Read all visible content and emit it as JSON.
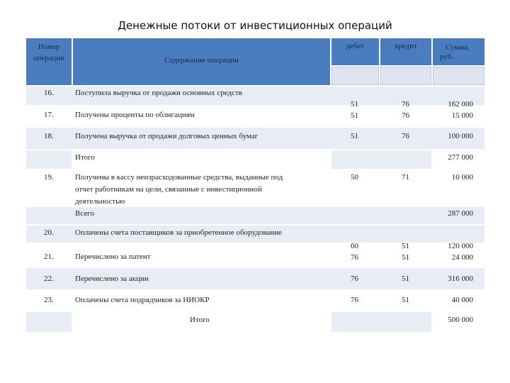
{
  "title": "Денежные потоки от инвестиционных операций",
  "headers": {
    "num": "Номер операции",
    "content": "Содержание операции",
    "debit": "дебет",
    "credit": "кредит",
    "sum_line1": "Сумма,",
    "sum_line2": "руб."
  },
  "rows": [
    {
      "num": "16.",
      "text": "Поступила выручка от продажи основных средств"
    },
    {
      "num": "17.",
      "text": "Получены проценты по облигациям"
    },
    {
      "num": "18.",
      "text": "Получена выручка от продажи долговых ценных бумаг"
    },
    {
      "num": "19.",
      "text_lines": [
        "Получены в кассу неизрасходованные средства, выданные под",
        "отчет работникам на цели, связанные с инвестиционной",
        "деятельностью"
      ]
    },
    {
      "num": "20.",
      "text": "Оплачены счета поставщиков за приобретенное оборудование"
    },
    {
      "num": "21.",
      "text": "Перечислено за патент"
    },
    {
      "num": "22.",
      "text": "Перечислено за акции"
    },
    {
      "num": "23.",
      "text": "Оплачены счета подрядчиков за НИОКР"
    }
  ],
  "values": {
    "r1617": {
      "debit1": "51",
      "debit2": "51",
      "credit1": "76",
      "credit2": "76",
      "sum1": "162 000",
      "sum2": "15 000"
    },
    "r18": {
      "debit": "51",
      "credit": "76",
      "sum": "100 000"
    },
    "r19": {
      "debit": "50",
      "credit": "71",
      "sum": "10 000"
    },
    "r2021": {
      "debit1": "60",
      "debit2": "76",
      "credit1": "51",
      "credit2": "51",
      "sum1": "120 000",
      "sum2": "24 000"
    },
    "r22": {
      "debit": "76",
      "credit": "51",
      "sum": "316 000"
    },
    "r23": {
      "debit": "76",
      "credit": "51",
      "sum": "40 000"
    }
  },
  "totals": {
    "itogo1_label": "Итого",
    "itogo1_value": "277 000",
    "vsego_label": "Всего",
    "vsego_value": "287 000",
    "itogo2_label": "Итого",
    "itogo2_value": "500 000"
  },
  "colors": {
    "header": "#4a7cc0",
    "band": "#e8ecf4"
  }
}
